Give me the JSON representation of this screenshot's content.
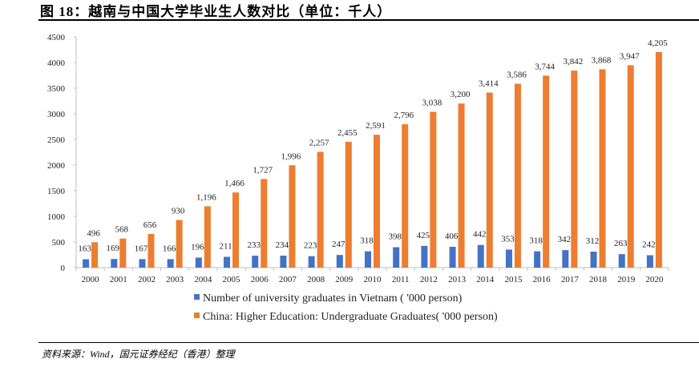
{
  "figure": {
    "title": "图 18：越南与中国大学毕业生人数对比（单位：千人）",
    "source": "资料来源：Wind，国元证券经纪（香港）整理"
  },
  "chart_data": {
    "type": "bar",
    "title": "",
    "xlabel": "",
    "ylabel": "",
    "ylim": [
      0,
      4500
    ],
    "yticks": [
      0,
      500,
      1000,
      1500,
      2000,
      2500,
      3000,
      3500,
      4000,
      4500
    ],
    "grid": false,
    "legend_position": "bottom",
    "categories": [
      "2000",
      "2001",
      "2002",
      "2003",
      "2004",
      "2005",
      "2006",
      "2007",
      "2008",
      "2009",
      "2010",
      "2011",
      "2012",
      "2013",
      "2014",
      "2015",
      "2016",
      "2017",
      "2018",
      "2019",
      "2020"
    ],
    "series": [
      {
        "name": "Number of university graduates in Vietnam ( '000 person)",
        "color": "#4472C4",
        "values": [
          163,
          169,
          167,
          166,
          196,
          211,
          233,
          234,
          223,
          247,
          318,
          398,
          425,
          406,
          442,
          353,
          318,
          342,
          312,
          263,
          242
        ],
        "labels": [
          "163",
          "169",
          "167",
          "166",
          "196",
          "211",
          "233",
          "234",
          "223",
          "247",
          "318",
          "398",
          "425",
          "406",
          "442",
          "353",
          "318",
          "342",
          "312",
          "263",
          "242"
        ]
      },
      {
        "name": "China: Higher Education: Undergraduate Graduates( '000 person)",
        "color": "#ED7D31",
        "values": [
          496,
          568,
          656,
          930,
          1196,
          1466,
          1727,
          1996,
          2257,
          2455,
          2591,
          2796,
          3038,
          3200,
          3414,
          3586,
          3744,
          3842,
          3868,
          3947,
          4205
        ],
        "labels": [
          "496",
          "568",
          "656",
          "930",
          "1,196",
          "1,466",
          "1,727",
          "1,996",
          "2,257",
          "2,455",
          "2,591",
          "2,796",
          "3,038",
          "3,200",
          "3,414",
          "3,586",
          "3,744",
          "3,842",
          "3,868",
          "3,947",
          "4,205"
        ]
      }
    ]
  }
}
